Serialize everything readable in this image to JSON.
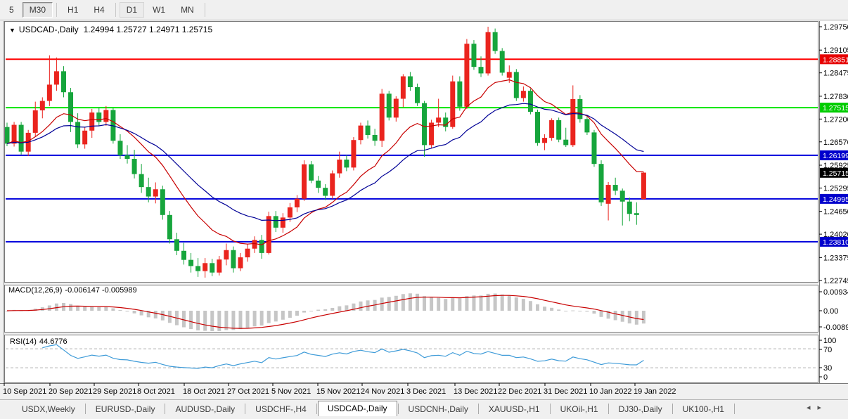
{
  "toolbar": {
    "items": [
      "5",
      "M30",
      "H1",
      "H4",
      "D1",
      "W1",
      "MN"
    ],
    "pressed": "M30",
    "highlighted": "D1"
  },
  "chart": {
    "symbol_label": "USDCAD-,Daily",
    "ohlc": "1.24994 1.25727 1.24971 1.25715",
    "current_price": "1.25715",
    "axis_labels": [
      {
        "t": "1.29750"
      },
      {
        "t": "1.29105"
      },
      {
        "t": "1.28851",
        "b": "red"
      },
      {
        "t": "1.28475"
      },
      {
        "t": "1.27830"
      },
      {
        "t": "1.27515",
        "b": "green"
      },
      {
        "t": "1.27200"
      },
      {
        "t": "1.26570"
      },
      {
        "t": "1.26199",
        "b": "blue"
      },
      {
        "t": "1.25925"
      },
      {
        "t": "1.25715",
        "b": "black"
      },
      {
        "t": "1.25295"
      },
      {
        "t": "1.24995",
        "b": "blue"
      },
      {
        "t": "1.24650"
      },
      {
        "t": "1.24020"
      },
      {
        "t": "1.23810",
        "b": "blue"
      },
      {
        "t": "1.23375"
      },
      {
        "t": "1.22745"
      }
    ],
    "hlines": [
      {
        "price": 1.28851,
        "color": "#ff0000"
      },
      {
        "price": 1.27515,
        "color": "#00e400"
      },
      {
        "price": 1.26199,
        "color": "#0000dc"
      },
      {
        "price": 1.24995,
        "color": "#0000dc"
      },
      {
        "price": 1.2381,
        "color": "#0000dc"
      }
    ],
    "candles": [
      [
        1.2698,
        1.271,
        1.2645,
        1.2652
      ],
      [
        1.2652,
        1.2712,
        1.2644,
        1.2704
      ],
      [
        1.2704,
        1.2712,
        1.2622,
        1.263
      ],
      [
        1.263,
        1.269,
        1.2618,
        1.2682
      ],
      [
        1.2682,
        1.2768,
        1.2672,
        1.2744
      ],
      [
        1.2744,
        1.278,
        1.2722,
        1.277
      ],
      [
        1.277,
        1.2896,
        1.2756,
        1.2815
      ],
      [
        1.2815,
        1.289,
        1.2798,
        1.2852
      ],
      [
        1.2852,
        1.2866,
        1.278,
        1.2794
      ],
      [
        1.2794,
        1.2806,
        1.2684,
        1.2712
      ],
      [
        1.2712,
        1.2736,
        1.264,
        1.265
      ],
      [
        1.265,
        1.2698,
        1.2638,
        1.2688
      ],
      [
        1.2688,
        1.2748,
        1.2668,
        1.2738
      ],
      [
        1.2738,
        1.2752,
        1.27,
        1.2712
      ],
      [
        1.2712,
        1.2756,
        1.2701,
        1.2745
      ],
      [
        1.2745,
        1.275,
        1.2652,
        1.266
      ],
      [
        1.266,
        1.2678,
        1.261,
        1.262
      ],
      [
        1.262,
        1.2648,
        1.2597,
        1.261
      ],
      [
        1.261,
        1.2635,
        1.2556,
        1.2568
      ],
      [
        1.2568,
        1.2596,
        1.2516,
        1.2532
      ],
      [
        1.2532,
        1.2558,
        1.249,
        1.2506
      ],
      [
        1.2506,
        1.2545,
        1.2487,
        1.2526
      ],
      [
        1.2526,
        1.2536,
        1.2442,
        1.2455
      ],
      [
        1.2455,
        1.2466,
        1.2376,
        1.2388
      ],
      [
        1.2388,
        1.2406,
        1.2344,
        1.2356
      ],
      [
        1.2356,
        1.2378,
        1.2318,
        1.2331
      ],
      [
        1.2331,
        1.235,
        1.2296,
        1.2314
      ],
      [
        1.2314,
        1.2336,
        1.2284,
        1.23
      ],
      [
        1.23,
        1.2336,
        1.2282,
        1.2322
      ],
      [
        1.2322,
        1.2334,
        1.2286,
        1.2296
      ],
      [
        1.2296,
        1.2342,
        1.2288,
        1.2332
      ],
      [
        1.2332,
        1.2376,
        1.2316,
        1.2358
      ],
      [
        1.2358,
        1.2368,
        1.2296,
        1.2308
      ],
      [
        1.2308,
        1.235,
        1.23,
        1.2338
      ],
      [
        1.2338,
        1.2374,
        1.2326,
        1.2362
      ],
      [
        1.2362,
        1.2396,
        1.235,
        1.2386
      ],
      [
        1.2386,
        1.24,
        1.2334,
        1.235
      ],
      [
        1.235,
        1.2464,
        1.2346,
        1.2452
      ],
      [
        1.2452,
        1.2466,
        1.2408,
        1.242
      ],
      [
        1.242,
        1.246,
        1.2406,
        1.2448
      ],
      [
        1.2448,
        1.2488,
        1.2436,
        1.2476
      ],
      [
        1.2476,
        1.251,
        1.2463,
        1.25
      ],
      [
        1.25,
        1.2606,
        1.2494,
        1.2595
      ],
      [
        1.2595,
        1.2604,
        1.2543,
        1.255
      ],
      [
        1.255,
        1.2563,
        1.2516,
        1.253
      ],
      [
        1.253,
        1.254,
        1.2496,
        1.2508
      ],
      [
        1.2508,
        1.2578,
        1.25,
        1.257
      ],
      [
        1.257,
        1.263,
        1.2558,
        1.2608
      ],
      [
        1.2608,
        1.262,
        1.2576,
        1.2586
      ],
      [
        1.2586,
        1.267,
        1.2578,
        1.2662
      ],
      [
        1.2662,
        1.271,
        1.265,
        1.2702
      ],
      [
        1.2702,
        1.2716,
        1.2666,
        1.2676
      ],
      [
        1.2676,
        1.2693,
        1.2646,
        1.266
      ],
      [
        1.266,
        1.2803,
        1.2643,
        1.279
      ],
      [
        1.279,
        1.2798,
        1.2716,
        1.2724
      ],
      [
        1.2724,
        1.2783,
        1.2713,
        1.2776
      ],
      [
        1.2776,
        1.2844,
        1.2753,
        1.2838
      ],
      [
        1.2838,
        1.285,
        1.2798,
        1.2808
      ],
      [
        1.2808,
        1.2818,
        1.2756,
        1.2764
      ],
      [
        1.2764,
        1.277,
        1.2616,
        1.2648
      ],
      [
        1.2648,
        1.2718,
        1.264,
        1.271
      ],
      [
        1.271,
        1.2776,
        1.2698,
        1.2724
      ],
      [
        1.2724,
        1.2738,
        1.2686,
        1.2698
      ],
      [
        1.2698,
        1.284,
        1.2693,
        1.2824
      ],
      [
        1.2824,
        1.2838,
        1.2743,
        1.2754
      ],
      [
        1.2754,
        1.2941,
        1.2748,
        1.2928
      ],
      [
        1.2928,
        1.2938,
        1.2856,
        1.2864
      ],
      [
        1.2864,
        1.2893,
        1.2836,
        1.2846
      ],
      [
        1.2846,
        1.2975,
        1.284,
        1.296
      ],
      [
        1.296,
        1.297,
        1.29,
        1.2908
      ],
      [
        1.2908,
        1.2916,
        1.284,
        1.2848
      ],
      [
        1.2834,
        1.2868,
        1.282,
        1.285
      ],
      [
        1.285,
        1.2858,
        1.277,
        1.2778
      ],
      [
        1.2778,
        1.281,
        1.2768,
        1.2798
      ],
      [
        1.2798,
        1.2804,
        1.2733,
        1.274
      ],
      [
        1.274,
        1.2746,
        1.2646,
        1.2654
      ],
      [
        1.2654,
        1.2678,
        1.2634,
        1.2668
      ],
      [
        1.2668,
        1.2722,
        1.266,
        1.2717
      ],
      [
        1.2717,
        1.2724,
        1.2656,
        1.2663
      ],
      [
        1.2663,
        1.2696,
        1.2643,
        1.2648
      ],
      [
        1.2648,
        1.2813,
        1.2643,
        1.2775
      ],
      [
        1.2775,
        1.2786,
        1.271,
        1.272
      ],
      [
        1.272,
        1.2728,
        1.2676,
        1.2683
      ],
      [
        1.2683,
        1.269,
        1.2588,
        1.2596
      ],
      [
        1.2596,
        1.2606,
        1.248,
        1.249
      ],
      [
        1.2486,
        1.2546,
        1.244,
        1.2538
      ],
      [
        1.2538,
        1.2558,
        1.251,
        1.2522
      ],
      [
        1.2522,
        1.2528,
        1.2426,
        1.2492
      ],
      [
        1.2492,
        1.2503,
        1.2438,
        1.2458
      ],
      [
        1.246,
        1.249,
        1.2428,
        1.2455
      ],
      [
        1.2499,
        1.2573,
        1.2497,
        1.2572
      ]
    ]
  },
  "macd": {
    "label": "MACD(12,26,9)",
    "values": "-0.006147 -0.005989",
    "axis": [
      "0.009345",
      "0.00",
      "-0.00890"
    ]
  },
  "rsi": {
    "label": "RSI(14)",
    "value": "44.6776",
    "axis": [
      "100",
      "70",
      "30",
      "0"
    ],
    "levels": [
      70,
      30
    ]
  },
  "dates": [
    "10 Sep 2021",
    "20 Sep 2021",
    "29 Sep 2021",
    "8 Oct 2021",
    "18 Oct 2021",
    "27 Oct 2021",
    "5 Nov 2021",
    "15 Nov 2021",
    "24 Nov 2021",
    "3 Dec 2021",
    "13 Dec 2021",
    "22 Dec 2021",
    "31 Dec 2021",
    "10 Jan 2022",
    "19 Jan 2022"
  ],
  "tabs": {
    "items": [
      "USDX,Weekly",
      "EURUSD-,Daily",
      "AUDUSD-,Daily",
      "USDCHF-,H4",
      "USDCAD-,Daily",
      "USDCNH-,Daily",
      "XAUUSD-,H1",
      "UKOil-,H1",
      "DJ30-,Daily",
      "UK100-,H1"
    ],
    "active": "USDCAD-,Daily"
  },
  "colors": {
    "bull": "#ea241e",
    "bear": "#16a53c",
    "line_red": "#ff0000",
    "line_green": "#00e400",
    "line_blue": "#0000dc",
    "ma_fast": "#c80000",
    "ma_slow": "#000096",
    "macd_hist": "#c6c6c6",
    "macd_signal": "#c80000",
    "rsi_line": "#3e9bd8",
    "badge_red": "#e60000",
    "badge_green": "#00cc00",
    "badge_blue": "#0000cc",
    "badge_black": "#000000"
  }
}
